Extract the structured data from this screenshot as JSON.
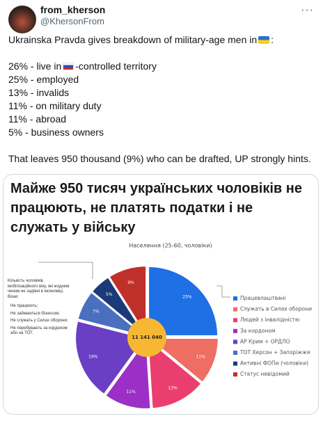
{
  "tweet": {
    "author": "from_kherson",
    "handle": "@KhersonFrom",
    "intro": "Ukrainska Pravda gives breakdown of military-age men in",
    "intro_end": ":",
    "occupied_before": "26% - live in",
    "occupied_after": "-controlled territory",
    "items": [
      "25% - employed",
      "13% - invalids",
      "11% - on military duty",
      "11% - abroad",
      "5% - business owners"
    ],
    "conclusion": "That leaves 950 thousand (9%) who can be drafted, UP strongly hints."
  },
  "chart_data": {
    "type": "pie",
    "title": "Майже 950 тисяч українських чоловіків не працюють, не платять податки і не служать у війську",
    "subtitle": "Населення (25-60, чоловіки)",
    "total_label": "11 141 040",
    "note": "Кількість чоловіків мобілізаційного віку, які жодним чином не задіяні в економіці. Вони:",
    "note_items": [
      "Не працюють;",
      "Не займаються бізнесом;",
      "Не служать у Силах оборони;",
      "Не перебувають за кордоном або на ТОТ."
    ],
    "categories": [
      "Працевлаштвані",
      "Служать в Силах оборони",
      "Людей з інвалідністю",
      "За кордоном",
      "АР Крим + ОРДЛО",
      "ТОТ Херсон + Запоріжжя",
      "Активні ФОПи (чоловіки)",
      "Статус невідомий"
    ],
    "values": [
      25,
      11,
      13,
      11,
      19,
      7,
      5,
      9
    ],
    "value_labels": [
      "25%",
      "11%",
      "13%",
      "11%",
      "19%",
      "7%",
      "5%",
      "9%"
    ],
    "colors": [
      "#1f6fe5",
      "#ee6e64",
      "#ea3f6e",
      "#9b2fc6",
      "#6a3fc4",
      "#4a6fbf",
      "#1b3a7a",
      "#c0302a"
    ]
  }
}
